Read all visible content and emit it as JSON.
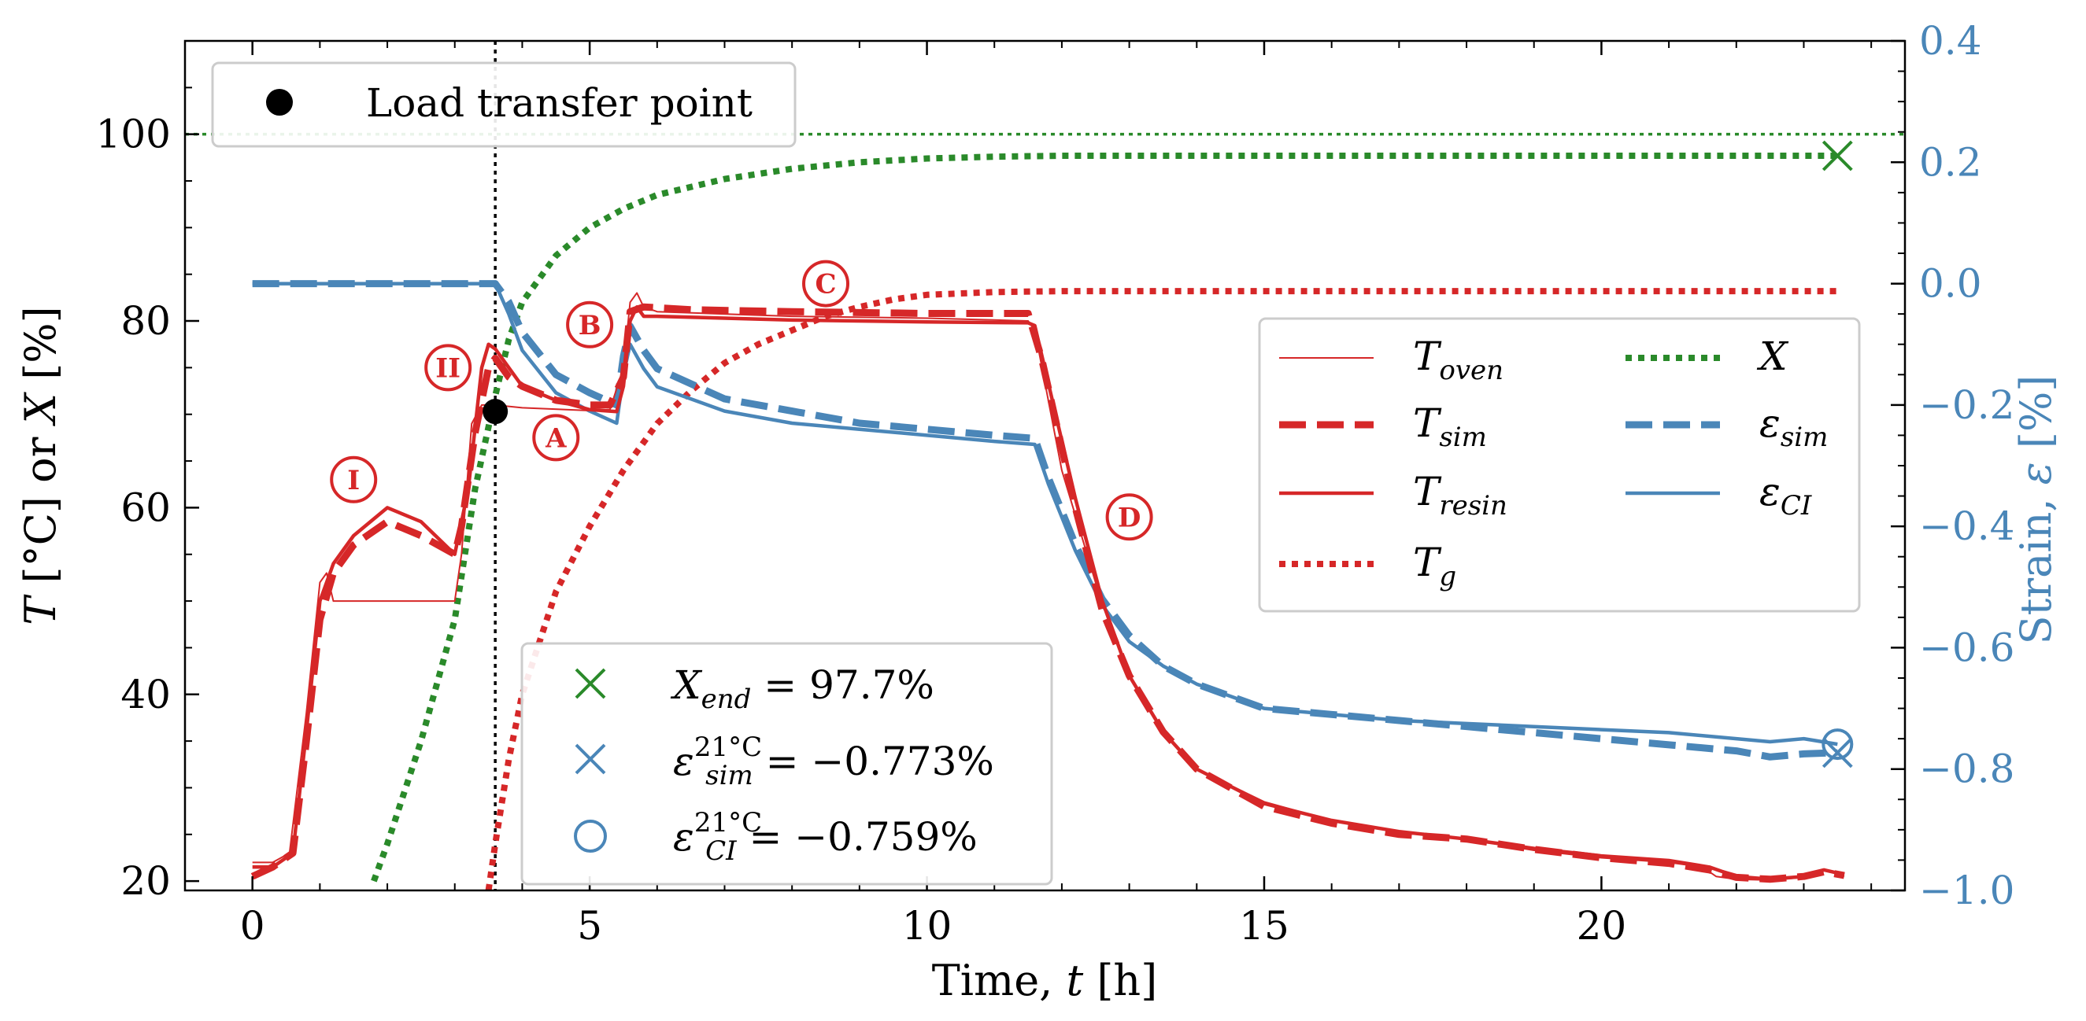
{
  "chart_data": {
    "type": "line",
    "x_axis": {
      "label": "Time, t [h]",
      "range": [
        -1,
        24.5
      ],
      "ticks": [
        0,
        5,
        10,
        15,
        20
      ],
      "tick_labels": [
        "0",
        "5",
        "10",
        "15",
        "20"
      ]
    },
    "y_left": {
      "label": "T [°C] or X [%]",
      "range": [
        19,
        110
      ],
      "ticks": [
        20,
        40,
        60,
        80,
        100
      ],
      "tick_labels": [
        "20",
        "40",
        "60",
        "80",
        "100"
      ]
    },
    "y_right": {
      "label": "Strain, ε [%]",
      "range": [
        -1.0,
        0.4
      ],
      "ticks": [
        -1.0,
        -0.8,
        -0.6,
        -0.4,
        -0.2,
        0.0,
        0.2,
        0.4
      ],
      "tick_labels": [
        "−1.0",
        "−0.8",
        "−0.6",
        "−0.4",
        "−0.2",
        "0.0",
        "0.2",
        "0.4"
      ],
      "color": "#4a86b8"
    },
    "reference_lines": [
      {
        "name": "X = 100%",
        "axis": "left",
        "value": 100,
        "orientation": "horizontal",
        "style": "dotted",
        "color": "#2a8a2a"
      },
      {
        "name": "Load transfer time",
        "axis": "x",
        "value": 3.6,
        "orientation": "vertical",
        "style": "dotted",
        "color": "#000000"
      }
    ],
    "series": [
      {
        "name": "T_oven",
        "axis": "left",
        "color": "#d62728",
        "style": "thin",
        "x": [
          0,
          0.3,
          0.55,
          0.8,
          1.0,
          1.1,
          1.2,
          1.3,
          2.0,
          3.0,
          3.1,
          3.25,
          3.4,
          3.6,
          4.0,
          5.0,
          5.3,
          5.5,
          5.6,
          5.7,
          5.8,
          6.0,
          8,
          10,
          11.5,
          11.6,
          12.0,
          12.5,
          13.0,
          13.5,
          14.0,
          15.0,
          16.0,
          17.0,
          18.0,
          19.0,
          20.0,
          21.0,
          21.5,
          21.7,
          22.0,
          22.5,
          23.0,
          23.3,
          23.6
        ],
        "y": [
          22,
          22,
          23,
          38,
          52,
          53,
          50,
          50,
          50,
          50,
          55,
          69,
          71,
          71,
          70.7,
          70.4,
          70.5,
          75,
          82,
          83,
          81.5,
          81,
          80.5,
          80.3,
          80,
          79,
          64,
          52,
          42,
          36,
          32,
          28.5,
          26.5,
          25.2,
          24.5,
          23.3,
          22.5,
          22,
          21.5,
          20.5,
          20.2,
          20.1,
          20.4,
          21.2,
          20.5
        ]
      },
      {
        "name": "T_sim",
        "axis": "left",
        "color": "#d62728",
        "style": "dashed",
        "x": [
          0,
          0.3,
          0.6,
          0.8,
          1.0,
          1.2,
          1.5,
          2.0,
          2.5,
          3.0,
          3.1,
          3.3,
          3.5,
          3.6,
          3.8,
          4.0,
          4.5,
          5.0,
          5.3,
          5.5,
          5.6,
          5.8,
          6.5,
          8,
          10,
          11.5,
          11.7,
          12.2,
          12.6,
          13.0,
          13.5,
          14.0,
          15.0,
          16.0,
          17.0,
          18.0,
          19.0,
          20.0,
          21.0,
          21.6,
          22.0,
          22.5,
          23.0,
          23.3,
          23.6
        ],
        "y": [
          20.5,
          21.5,
          23,
          35,
          48,
          53,
          56,
          58.5,
          57,
          55,
          58,
          68,
          75,
          76,
          74,
          73,
          71.5,
          71,
          71,
          74,
          81,
          81.5,
          81.2,
          81,
          80.8,
          80.8,
          76,
          60,
          49,
          42,
          36,
          32,
          28,
          26.2,
          25,
          24.5,
          23.4,
          22.5,
          21.9,
          21.2,
          20.4,
          20.2,
          20.5,
          21.0,
          20.6
        ]
      },
      {
        "name": "T_resin",
        "axis": "left",
        "color": "#d62728",
        "style": "solid",
        "x": [
          0,
          0.3,
          0.6,
          0.8,
          1.0,
          1.2,
          1.5,
          2.0,
          2.5,
          3.0,
          3.2,
          3.4,
          3.5,
          3.6,
          4.0,
          4.5,
          5.0,
          5.4,
          5.5,
          5.6,
          5.7,
          5.8,
          6.0,
          8,
          10,
          11.5,
          11.6,
          12.2,
          12.6,
          13.0,
          13.5,
          14.0,
          15.0,
          16.0,
          17.0,
          18.0,
          19.0,
          20.0,
          21.0,
          21.6,
          22.0,
          22.5,
          23.0,
          23.3,
          23.6
        ],
        "y": [
          21.5,
          21.5,
          23,
          36,
          50,
          54,
          57,
          60,
          58.5,
          55,
          62,
          75,
          77.5,
          77,
          73,
          71.5,
          70.5,
          70.3,
          73,
          80,
          81.5,
          80.5,
          80.5,
          80.1,
          79.9,
          79.8,
          79.5,
          61,
          50,
          42,
          36,
          32,
          28.3,
          26.5,
          25.3,
          24.5,
          23.5,
          22.7,
          22.2,
          21.5,
          20.5,
          20.2,
          20.5,
          21.2,
          20.7
        ]
      },
      {
        "name": "T_g",
        "axis": "left",
        "color": "#d62728",
        "style": "dotted",
        "x": [
          3.5,
          3.6,
          3.8,
          4.0,
          4.5,
          5.0,
          5.5,
          6.0,
          6.5,
          7.0,
          7.5,
          8.0,
          8.5,
          9.0,
          9.5,
          10.0,
          11.0,
          12.0,
          14.0,
          16.0,
          18.0,
          20.0,
          22.0,
          23.5
        ],
        "y": [
          19,
          24,
          33,
          40,
          51,
          58,
          64,
          69,
          72.5,
          75.5,
          77.5,
          79,
          80.5,
          81.5,
          82.3,
          82.8,
          83.1,
          83.2,
          83.2,
          83.2,
          83.2,
          83.2,
          83.2,
          83.2
        ]
      },
      {
        "name": "X",
        "axis": "left",
        "color": "#2a8a2a",
        "style": "dotted",
        "x": [
          1.8,
          2.0,
          2.5,
          3.0,
          3.3,
          3.6,
          3.8,
          4.0,
          4.5,
          5.0,
          5.5,
          6.0,
          7.0,
          8.0,
          9.0,
          10.0,
          11.0,
          12.0,
          14.0,
          16.0,
          18.0,
          20.0,
          22.0,
          23.5
        ],
        "y": [
          20,
          24,
          35,
          48,
          62,
          72,
          78,
          82,
          87,
          90,
          92,
          93.5,
          95.2,
          96.3,
          97,
          97.4,
          97.6,
          97.7,
          97.7,
          97.7,
          97.7,
          97.7,
          97.7,
          97.7
        ]
      },
      {
        "name": "ε_sim",
        "axis": "right",
        "color": "#4a86b8",
        "style": "dashed",
        "x": [
          0,
          1,
          2,
          3,
          3.6,
          3.8,
          4.0,
          4.5,
          5.0,
          5.4,
          5.5,
          5.6,
          5.7,
          5.8,
          6.0,
          7,
          8,
          9,
          10,
          11,
          11.6,
          11.8,
          12.2,
          12.6,
          13.0,
          13.5,
          14,
          15,
          16,
          17,
          18,
          19,
          20,
          21,
          22,
          22.5,
          23,
          23.5
        ],
        "y": [
          0.0,
          0.0,
          0.0,
          0.0,
          0.0,
          -0.03,
          -0.08,
          -0.15,
          -0.18,
          -0.2,
          -0.12,
          -0.07,
          -0.09,
          -0.11,
          -0.14,
          -0.19,
          -0.21,
          -0.23,
          -0.24,
          -0.25,
          -0.255,
          -0.32,
          -0.43,
          -0.52,
          -0.58,
          -0.63,
          -0.66,
          -0.7,
          -0.71,
          -0.72,
          -0.73,
          -0.74,
          -0.75,
          -0.76,
          -0.77,
          -0.78,
          -0.775,
          -0.773
        ]
      },
      {
        "name": "ε_CI",
        "axis": "right",
        "color": "#4a86b8",
        "style": "solid",
        "x": [
          0,
          1,
          2,
          3,
          3.6,
          3.8,
          4.0,
          4.5,
          5.0,
          5.4,
          5.5,
          5.6,
          5.7,
          5.8,
          6.0,
          7,
          8,
          9,
          10,
          11,
          11.6,
          11.8,
          12.2,
          12.6,
          13.0,
          13.5,
          14,
          15,
          16,
          17,
          18,
          19,
          20,
          21,
          22,
          22.5,
          23,
          23.5
        ],
        "y": [
          0.0,
          0.0,
          0.0,
          0.0,
          0.0,
          -0.05,
          -0.11,
          -0.18,
          -0.21,
          -0.23,
          -0.15,
          -0.1,
          -0.12,
          -0.14,
          -0.17,
          -0.21,
          -0.23,
          -0.24,
          -0.25,
          -0.26,
          -0.265,
          -0.33,
          -0.44,
          -0.53,
          -0.59,
          -0.63,
          -0.66,
          -0.7,
          -0.71,
          -0.72,
          -0.725,
          -0.73,
          -0.735,
          -0.74,
          -0.75,
          -0.755,
          -0.75,
          -0.759
        ]
      }
    ],
    "markers": [
      {
        "name": "Load transfer point",
        "axis": "left",
        "x": 3.6,
        "y": 70.3,
        "shape": "filled-circle",
        "color": "#000000"
      },
      {
        "name": "X_end",
        "axis": "left",
        "x": 23.5,
        "y": 97.7,
        "shape": "x",
        "color": "#2a8a2a"
      },
      {
        "name": "eps_sim_end",
        "axis": "right",
        "x": 23.5,
        "y": -0.773,
        "shape": "x",
        "color": "#4a86b8"
      },
      {
        "name": "eps_CI_end",
        "axis": "right",
        "x": 23.5,
        "y": -0.759,
        "shape": "open-circle",
        "color": "#4a86b8"
      }
    ],
    "annotations": [
      {
        "label": "I",
        "x": 1.5,
        "y": 63
      },
      {
        "label": "II",
        "x": 2.9,
        "y": 75
      },
      {
        "label": "A",
        "x": 4.5,
        "y": 67.5
      },
      {
        "label": "B",
        "x": 5.0,
        "y": 79.6
      },
      {
        "label": "C",
        "x": 8.5,
        "y": 84
      },
      {
        "label": "D",
        "x": 13.0,
        "y": 59
      }
    ]
  },
  "axes": {
    "x_title_main": "Time, ",
    "x_title_var": "t",
    "x_title_unit": " [h]",
    "yl_title_var1": "T",
    "yl_title_mid": " [°C] or ",
    "yl_title_var2": "X",
    "yl_title_unit": " [%]",
    "yr_title_main": "Strain, ",
    "yr_title_var": "ε",
    "yr_title_unit": " [%]"
  },
  "legend_top": {
    "label": "Load transfer point"
  },
  "legend_series": {
    "t_oven": "T",
    "t_oven_sub": "oven",
    "t_sim": "T",
    "t_sim_sub": "sim",
    "t_resin": "T",
    "t_resin_sub": "resin",
    "t_g": "T",
    "t_g_sub": "g",
    "x": "X",
    "eps_sim": "ε",
    "eps_sim_sub": "sim",
    "eps_ci": "ε",
    "eps_ci_sub": "CI"
  },
  "legend_results": {
    "x_end_var": "X",
    "x_end_sub": "end",
    "x_end_value": " = 97.7%",
    "eps_sim_var": "ε",
    "eps_sim_sup": "21°C",
    "eps_sim_sub": "sim",
    "eps_sim_value": " = −0.773%",
    "eps_ci_var": "ε",
    "eps_ci_sup": "21°C",
    "eps_ci_sub": "CI",
    "eps_ci_value": " = −0.759%"
  },
  "colors": {
    "red": "#d62728",
    "green": "#2a8a2a",
    "blue": "#4a86b8",
    "black": "#000000"
  }
}
